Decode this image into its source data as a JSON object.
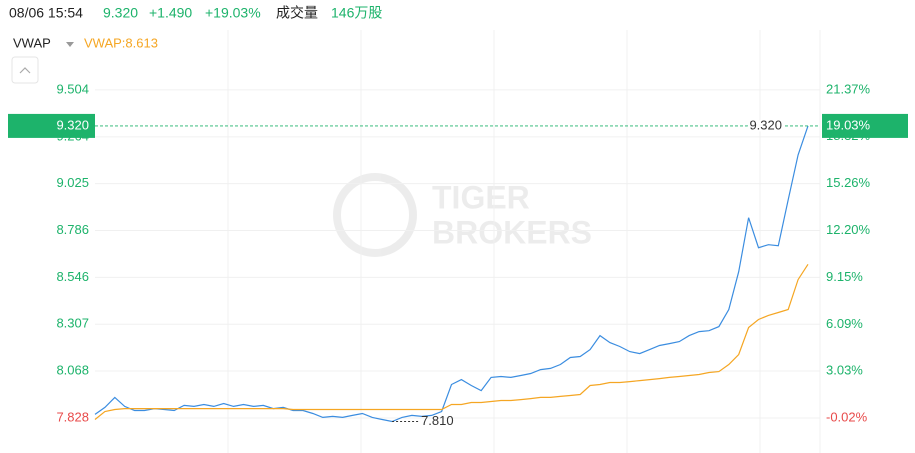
{
  "chart_data": {
    "type": "line",
    "header": {
      "time": "08/06 15:54",
      "price": "9.320",
      "change": "+1.490",
      "change_pct": "+19.03%",
      "volume_label": "成交量",
      "volume": "146万股"
    },
    "indicator": "VWAP",
    "watermark": [
      "TIGER",
      "BROKERS"
    ],
    "up_color": "#1db36b",
    "down_color": "#e84a4a",
    "ylim": [
      7.649,
      9.81
    ],
    "yticks": [
      9.504,
      9.264,
      9.025,
      8.786,
      8.546,
      8.307,
      8.068,
      7.828
    ],
    "y2lim": [
      -2.3,
      25.28
    ],
    "y2ticks": [
      {
        "value": 21.37,
        "label": "21.37%"
      },
      {
        "value": 18.32,
        "label": "18.32%"
      },
      {
        "value": 15.26,
        "label": "15.26%"
      },
      {
        "value": 12.2,
        "label": "12.20%"
      },
      {
        "value": 9.15,
        "label": "9.15%"
      },
      {
        "value": 6.09,
        "label": "6.09%"
      },
      {
        "value": 3.03,
        "label": "3.03%"
      },
      {
        "value": -0.02,
        "label": "-0.02%"
      }
    ],
    "grid": true,
    "series": [
      {
        "color": "#3b8de0",
        "values": [
          7.846,
          7.882,
          7.933,
          7.887,
          7.866,
          7.866,
          7.876,
          7.871,
          7.866,
          7.892,
          7.887,
          7.897,
          7.887,
          7.902,
          7.887,
          7.897,
          7.887,
          7.892,
          7.876,
          7.882,
          7.866,
          7.866,
          7.851,
          7.831,
          7.836,
          7.831,
          7.841,
          7.851,
          7.831,
          7.82,
          7.81,
          7.831,
          7.841,
          7.836,
          7.841,
          7.861,
          7.999,
          8.024,
          7.994,
          7.968,
          8.035,
          8.04,
          8.035,
          8.045,
          8.055,
          8.075,
          8.081,
          8.101,
          8.137,
          8.142,
          8.177,
          8.249,
          8.213,
          8.193,
          8.167,
          8.157,
          8.177,
          8.198,
          8.208,
          8.218,
          8.249,
          8.269,
          8.274,
          8.295,
          8.382,
          8.575,
          8.851,
          8.698,
          8.713,
          8.708,
          8.943,
          9.172,
          9.32
        ]
      },
      {
        "name": "VWAP:8.613",
        "color": "#f5a623",
        "values": [
          7.82,
          7.861,
          7.871,
          7.876,
          7.876,
          7.876,
          7.876,
          7.876,
          7.876,
          7.876,
          7.876,
          7.876,
          7.876,
          7.876,
          7.876,
          7.876,
          7.876,
          7.876,
          7.876,
          7.876,
          7.871,
          7.871,
          7.871,
          7.871,
          7.871,
          7.871,
          7.871,
          7.871,
          7.871,
          7.871,
          7.871,
          7.871,
          7.871,
          7.871,
          7.871,
          7.871,
          7.897,
          7.897,
          7.907,
          7.907,
          7.912,
          7.917,
          7.917,
          7.922,
          7.927,
          7.933,
          7.933,
          7.938,
          7.943,
          7.948,
          7.994,
          7.999,
          8.009,
          8.009,
          8.014,
          8.019,
          8.024,
          8.029,
          8.035,
          8.04,
          8.045,
          8.05,
          8.06,
          8.065,
          8.101,
          8.152,
          8.29,
          8.331,
          8.352,
          8.367,
          8.382,
          8.535,
          8.613
        ]
      }
    ],
    "current_price_label": "9.320",
    "current_pct_label": "19.03%",
    "last_label": "9.320",
    "min_label": "7.810"
  }
}
